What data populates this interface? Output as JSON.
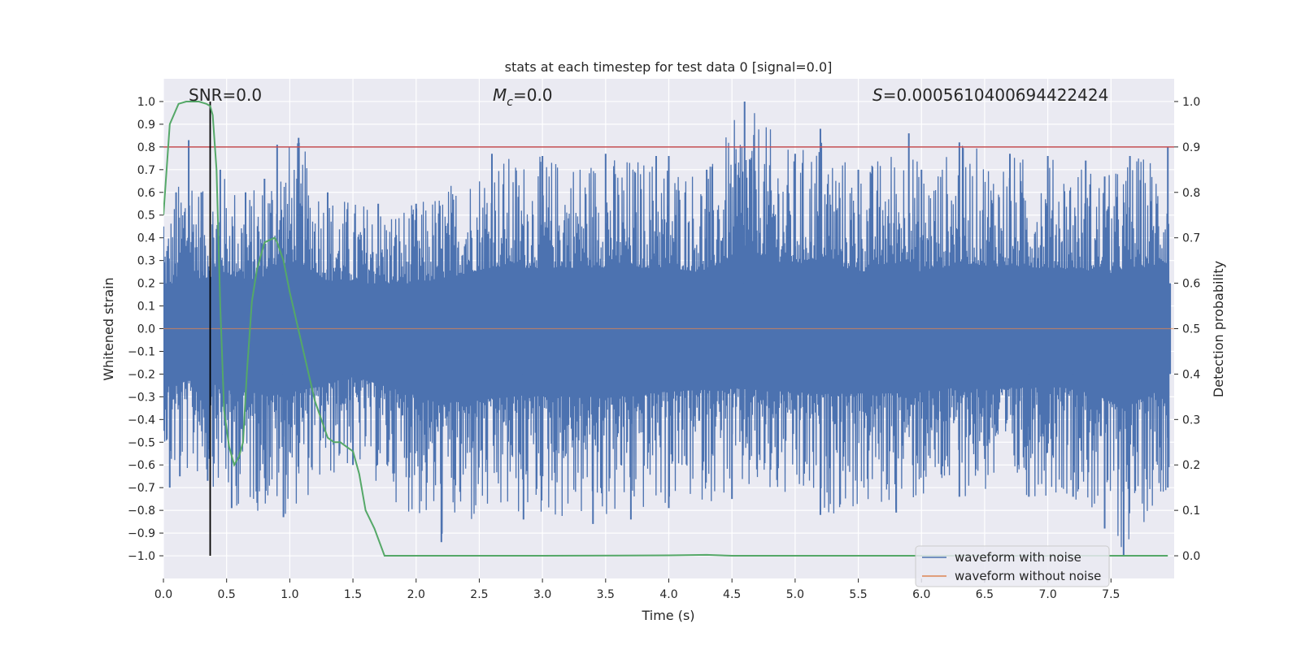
{
  "chart_data": {
    "type": "line",
    "title": "stats at each timestep for test data 0 [signal=0.0]",
    "xlabel": "Time (s)",
    "ylabel": "Whitened strain",
    "ylabel_right": "Detection probability",
    "xlim": [
      0.0,
      8.0
    ],
    "ylim": [
      -1.1,
      1.1
    ],
    "ylim_right": [
      -0.05,
      1.05
    ],
    "x_ticks": [
      0.0,
      0.5,
      1.0,
      1.5,
      2.0,
      2.5,
      3.0,
      3.5,
      4.0,
      4.5,
      5.0,
      5.5,
      6.0,
      6.5,
      7.0,
      7.5
    ],
    "x_tick_labels": [
      "0.0",
      "0.5",
      "1.0",
      "1.5",
      "2.0",
      "2.5",
      "3.0",
      "3.5",
      "4.0",
      "4.5",
      "5.0",
      "5.5",
      "6.0",
      "6.5",
      "7.0",
      "7.5"
    ],
    "y_ticks": [
      1.0,
      0.9,
      0.8,
      0.7,
      0.6,
      0.5,
      0.4,
      0.3,
      0.2,
      0.1,
      0.0,
      -0.1,
      -0.2,
      -0.3,
      -0.4,
      -0.5,
      -0.6,
      -0.7,
      -0.8,
      -0.9,
      -1.0
    ],
    "y_tick_labels": [
      "1.0",
      "0.9",
      "0.8",
      "0.7",
      "0.6",
      "0.5",
      "0.4",
      "0.3",
      "0.2",
      "0.1",
      "0.0",
      "−0.1",
      "−0.2",
      "−0.3",
      "−0.4",
      "−0.5",
      "−0.6",
      "−0.7",
      "−0.8",
      "−0.9",
      "−1.0"
    ],
    "y_right_ticks": [
      1.0,
      0.9,
      0.8,
      0.7,
      0.6,
      0.5,
      0.4,
      0.3,
      0.2,
      0.1,
      0.0
    ],
    "y_right_tick_labels": [
      "1.0",
      "0.9",
      "0.8",
      "0.7",
      "0.6",
      "0.5",
      "0.4",
      "0.3",
      "0.2",
      "0.1",
      "0.0"
    ],
    "annotations": {
      "snr": "SNR=0.0",
      "mc_symbol": "M",
      "mc_subscript": "c",
      "mc_value": "=0.0",
      "s_symbol": "S",
      "s_value": "=0.0005610400694422424"
    },
    "series": [
      {
        "name": "waveform with noise",
        "color": "#4c72b0",
        "style": "dense noise",
        "upper_envelope": [
          [
            0.0,
            0.45
          ],
          [
            0.1,
            0.6
          ],
          [
            0.2,
            0.83
          ],
          [
            0.3,
            0.6
          ],
          [
            0.45,
            0.7
          ],
          [
            0.65,
            0.6
          ],
          [
            0.8,
            0.66
          ],
          [
            0.9,
            0.81
          ],
          [
            1.07,
            0.84
          ],
          [
            1.3,
            0.6
          ],
          [
            1.7,
            0.55
          ],
          [
            2.0,
            0.55
          ],
          [
            2.6,
            0.77
          ],
          [
            3.0,
            0.76
          ],
          [
            3.5,
            0.77
          ],
          [
            3.9,
            0.76
          ],
          [
            4.0,
            0.76
          ],
          [
            4.3,
            0.7
          ],
          [
            4.6,
            1.0
          ],
          [
            5.0,
            0.77
          ],
          [
            5.2,
            0.88
          ],
          [
            5.5,
            0.7
          ],
          [
            5.9,
            0.86
          ],
          [
            6.0,
            0.7
          ],
          [
            6.3,
            0.82
          ],
          [
            6.7,
            0.77
          ],
          [
            7.0,
            0.76
          ],
          [
            7.3,
            0.74
          ],
          [
            7.45,
            0.67
          ],
          [
            7.65,
            0.76
          ],
          [
            7.95,
            0.8
          ]
        ],
        "lower_envelope": [
          [
            0.0,
            -0.45
          ],
          [
            0.05,
            -0.7
          ],
          [
            0.13,
            -0.65
          ],
          [
            0.35,
            -0.67
          ],
          [
            0.54,
            -0.79
          ],
          [
            0.95,
            -0.83
          ],
          [
            1.5,
            -0.6
          ],
          [
            2.2,
            -0.94
          ],
          [
            2.85,
            -0.84
          ],
          [
            3.4,
            -0.86
          ],
          [
            3.7,
            -0.84
          ],
          [
            4.0,
            -0.79
          ],
          [
            4.5,
            -0.75
          ],
          [
            5.2,
            -0.82
          ],
          [
            5.8,
            -0.81
          ],
          [
            6.3,
            -0.74
          ],
          [
            6.85,
            -0.74
          ],
          [
            7.2,
            -0.74
          ],
          [
            7.45,
            -0.88
          ],
          [
            7.6,
            -1.0
          ],
          [
            7.95,
            -0.7
          ]
        ]
      },
      {
        "name": "waveform without noise",
        "color": "#dd8452",
        "x": [
          0.0,
          8.0
        ],
        "y": [
          0.0,
          0.0
        ]
      },
      {
        "name": "detection probability",
        "color": "#55a868",
        "axis": "right",
        "x": [
          0.0,
          0.05,
          0.12,
          0.18,
          0.23,
          0.28,
          0.34,
          0.37,
          0.39,
          0.42,
          0.45,
          0.48,
          0.52,
          0.56,
          0.6,
          0.63,
          0.66,
          0.7,
          0.74,
          0.8,
          0.88,
          0.9,
          0.95,
          1.0,
          1.1,
          1.2,
          1.25,
          1.3,
          1.35,
          1.4,
          1.45,
          1.5,
          1.55,
          1.6,
          1.67,
          1.75,
          2.0,
          3.0,
          4.0,
          4.3,
          4.5,
          5.0,
          6.0,
          7.0,
          7.5,
          7.95
        ],
        "y": [
          0.75,
          0.95,
          0.995,
          1.0,
          1.0,
          1.0,
          0.995,
          0.99,
          0.97,
          0.85,
          0.55,
          0.32,
          0.24,
          0.2,
          0.22,
          0.25,
          0.4,
          0.56,
          0.63,
          0.69,
          0.7,
          0.69,
          0.65,
          0.58,
          0.46,
          0.34,
          0.3,
          0.26,
          0.25,
          0.25,
          0.24,
          0.23,
          0.18,
          0.1,
          0.06,
          0.0,
          0.0,
          0.0,
          0.001,
          0.002,
          0.0,
          0.0,
          0.0,
          0.0,
          0.0,
          0.0
        ]
      }
    ],
    "reference_lines": [
      {
        "name": "threshold",
        "axis": "right",
        "value": 0.9,
        "color": "#c44e52"
      },
      {
        "name": "marker",
        "axis": "x",
        "value": 0.37,
        "color": "#000000"
      }
    ],
    "legend": {
      "location": "lower-right",
      "entries": [
        {
          "label": "waveform with noise",
          "color": "#4c72b0"
        },
        {
          "label": "waveform without noise",
          "color": "#dd8452"
        }
      ]
    },
    "style": {
      "plot_background": "#eaeaf2",
      "grid_color": "#ffffff",
      "figure_background": "#ffffff"
    }
  }
}
